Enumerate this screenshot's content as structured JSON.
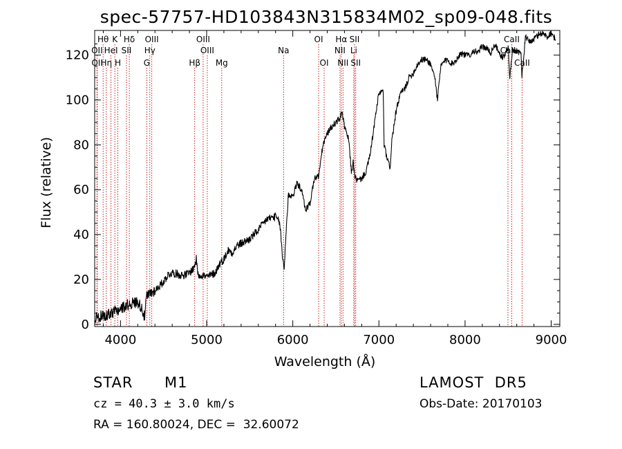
{
  "chart_data": {
    "type": "line",
    "title": "spec-57757-HD103843N315834M02_sp09-048.fits",
    "xlabel": "Wavelength (Å)",
    "ylabel": "Flux (relative)",
    "xlim": [
      3700,
      9100
    ],
    "ylim": [
      -1,
      131
    ],
    "x_ticks": [
      4000,
      5000,
      6000,
      7000,
      8000,
      9000
    ],
    "y_ticks": [
      0,
      20,
      40,
      60,
      80,
      100,
      120
    ],
    "grid": false,
    "series": [
      {
        "x": [
          3700,
          3800,
          3900,
          4000,
          4100,
          4200,
          4250,
          4280,
          4300,
          4350,
          4400,
          4450,
          4500,
          4550,
          4600,
          4700,
          4750,
          4800,
          4850,
          4880,
          4900,
          4950,
          5000,
          5050,
          5100,
          5150,
          5200,
          5250,
          5300,
          5350,
          5400,
          5500,
          5600,
          5700,
          5800,
          5850,
          5880,
          5900,
          5920,
          5950,
          6000,
          6050,
          6100,
          6150,
          6200,
          6250,
          6300,
          6350,
          6400,
          6450,
          6500,
          6550,
          6570,
          6600,
          6650,
          6680,
          6700,
          6720,
          6750,
          6800,
          6850,
          6900,
          6950,
          7000,
          7050,
          7060,
          7100,
          7130,
          7150,
          7200,
          7250,
          7300,
          7350,
          7400,
          7450,
          7500,
          7550,
          7600,
          7650,
          7680,
          7700,
          7720,
          7750,
          7800,
          7850,
          7900,
          7950,
          8000,
          8050,
          8100,
          8150,
          8200,
          8250,
          8300,
          8350,
          8400,
          8450,
          8500,
          8520,
          8550,
          8600,
          8650,
          8660,
          8700,
          8750,
          8800,
          8850,
          8900,
          8950,
          9000,
          9050
        ],
        "y": [
          3,
          4,
          5,
          7,
          9,
          10,
          7,
          3,
          12,
          14,
          15,
          17,
          19,
          22,
          23,
          22,
          22,
          23,
          25,
          29,
          22,
          22,
          21,
          22,
          23,
          27,
          29,
          33,
          32,
          35,
          36,
          38,
          42,
          47,
          48,
          45,
          30,
          25,
          40,
          58,
          57,
          63,
          60,
          51,
          54,
          65,
          66,
          80,
          85,
          88,
          90,
          92,
          95,
          88,
          82,
          68,
          72,
          66,
          64,
          65,
          68,
          76,
          90,
          103,
          104,
          80,
          73,
          70,
          82,
          95,
          103,
          105,
          110,
          112,
          116,
          118,
          118,
          116,
          110,
          100,
          108,
          115,
          117,
          118,
          116,
          118,
          121,
          120,
          120,
          122,
          121,
          124,
          123,
          121,
          125,
          120,
          119,
          124,
          110,
          122,
          122,
          121,
          110,
          128,
          126,
          127,
          129,
          130,
          128,
          130,
          127
        ]
      }
    ],
    "line_markers": [
      {
        "label": "Hθ",
        "x": 3798,
        "row": 1
      },
      {
        "label": "K",
        "x": 3934,
        "row": 1
      },
      {
        "label": "Hδ",
        "x": 4102,
        "row": 1
      },
      {
        "label": "OIII",
        "x": 4363,
        "row": 1
      },
      {
        "label": "OIII",
        "x": 4959,
        "row": 1
      },
      {
        "label": "OI",
        "x": 6300,
        "row": 1
      },
      {
        "label": "Hα",
        "x": 6563,
        "row": 1
      },
      {
        "label": "SII",
        "x": 6717,
        "row": 1
      },
      {
        "label": "CaII",
        "x": 8542,
        "row": 1
      },
      {
        "label": "OII",
        "x": 3727,
        "row": 2
      },
      {
        "label": "HeI",
        "x": 3889,
        "row": 2
      },
      {
        "label": "SII",
        "x": 4069,
        "row": 2
      },
      {
        "label": "Hγ",
        "x": 4340,
        "row": 2
      },
      {
        "label": "OIII",
        "x": 5007,
        "row": 2
      },
      {
        "label": "Na",
        "x": 5893,
        "row": 2
      },
      {
        "label": "NII",
        "x": 6548,
        "row": 2
      },
      {
        "label": "Li",
        "x": 6708,
        "row": 2
      },
      {
        "label": "CaII",
        "x": 8498,
        "row": 2
      },
      {
        "label": "OII",
        "x": 3729,
        "row": 3
      },
      {
        "label": "Hη",
        "x": 3835,
        "row": 3
      },
      {
        "label": "H",
        "x": 3969,
        "row": 3
      },
      {
        "label": "G",
        "x": 4305,
        "row": 3
      },
      {
        "label": "Hβ",
        "x": 4861,
        "row": 3
      },
      {
        "label": "Mg",
        "x": 5175,
        "row": 3
      },
      {
        "label": "OI",
        "x": 6364,
        "row": 3
      },
      {
        "label": "NII",
        "x": 6583,
        "row": 3
      },
      {
        "label": "SII",
        "x": 6731,
        "row": 3
      },
      {
        "label": "CaII",
        "x": 8662,
        "row": 3
      }
    ]
  },
  "info": {
    "object_class": "STAR",
    "subclass": "M1",
    "survey": "LAMOST  DR5",
    "cz": "cz = 40.3 ± 3.0 km/s",
    "obs_date": "Obs-Date: 20170103",
    "radec": "RA = 160.80024, DEC =  32.60072"
  },
  "colors": {
    "spectrum": "#000000",
    "marker_line": "#c00000",
    "text": "#000000",
    "background": "#ffffff"
  }
}
